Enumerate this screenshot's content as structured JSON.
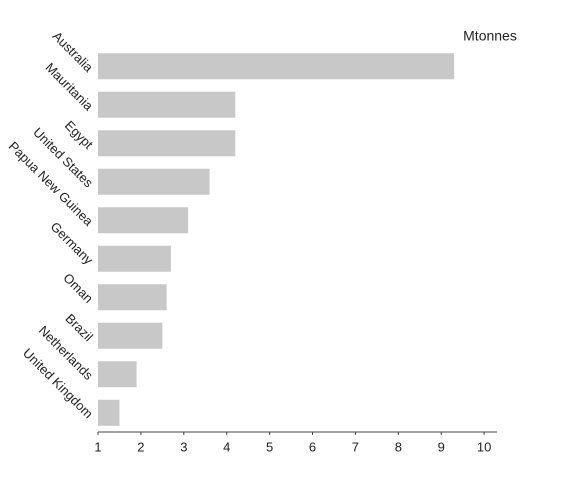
{
  "chart_data": {
    "type": "bar",
    "orientation": "horizontal",
    "unit_label": "Mtonnes",
    "categories": [
      "Australia",
      "Mauritania",
      "Egypt",
      "United States",
      "Papua New Guinea",
      "Germany",
      "Oman",
      "Brazil",
      "Netherlands",
      "United Kingdom"
    ],
    "values": [
      9.3,
      4.2,
      4.2,
      3.6,
      3.1,
      2.7,
      2.6,
      2.5,
      1.9,
      1.5
    ],
    "color": "#c8c8c8",
    "xlim": [
      1,
      10.3
    ],
    "xticks": [
      1,
      2,
      3,
      4,
      5,
      6,
      7,
      8,
      9,
      10
    ],
    "grid": false
  }
}
